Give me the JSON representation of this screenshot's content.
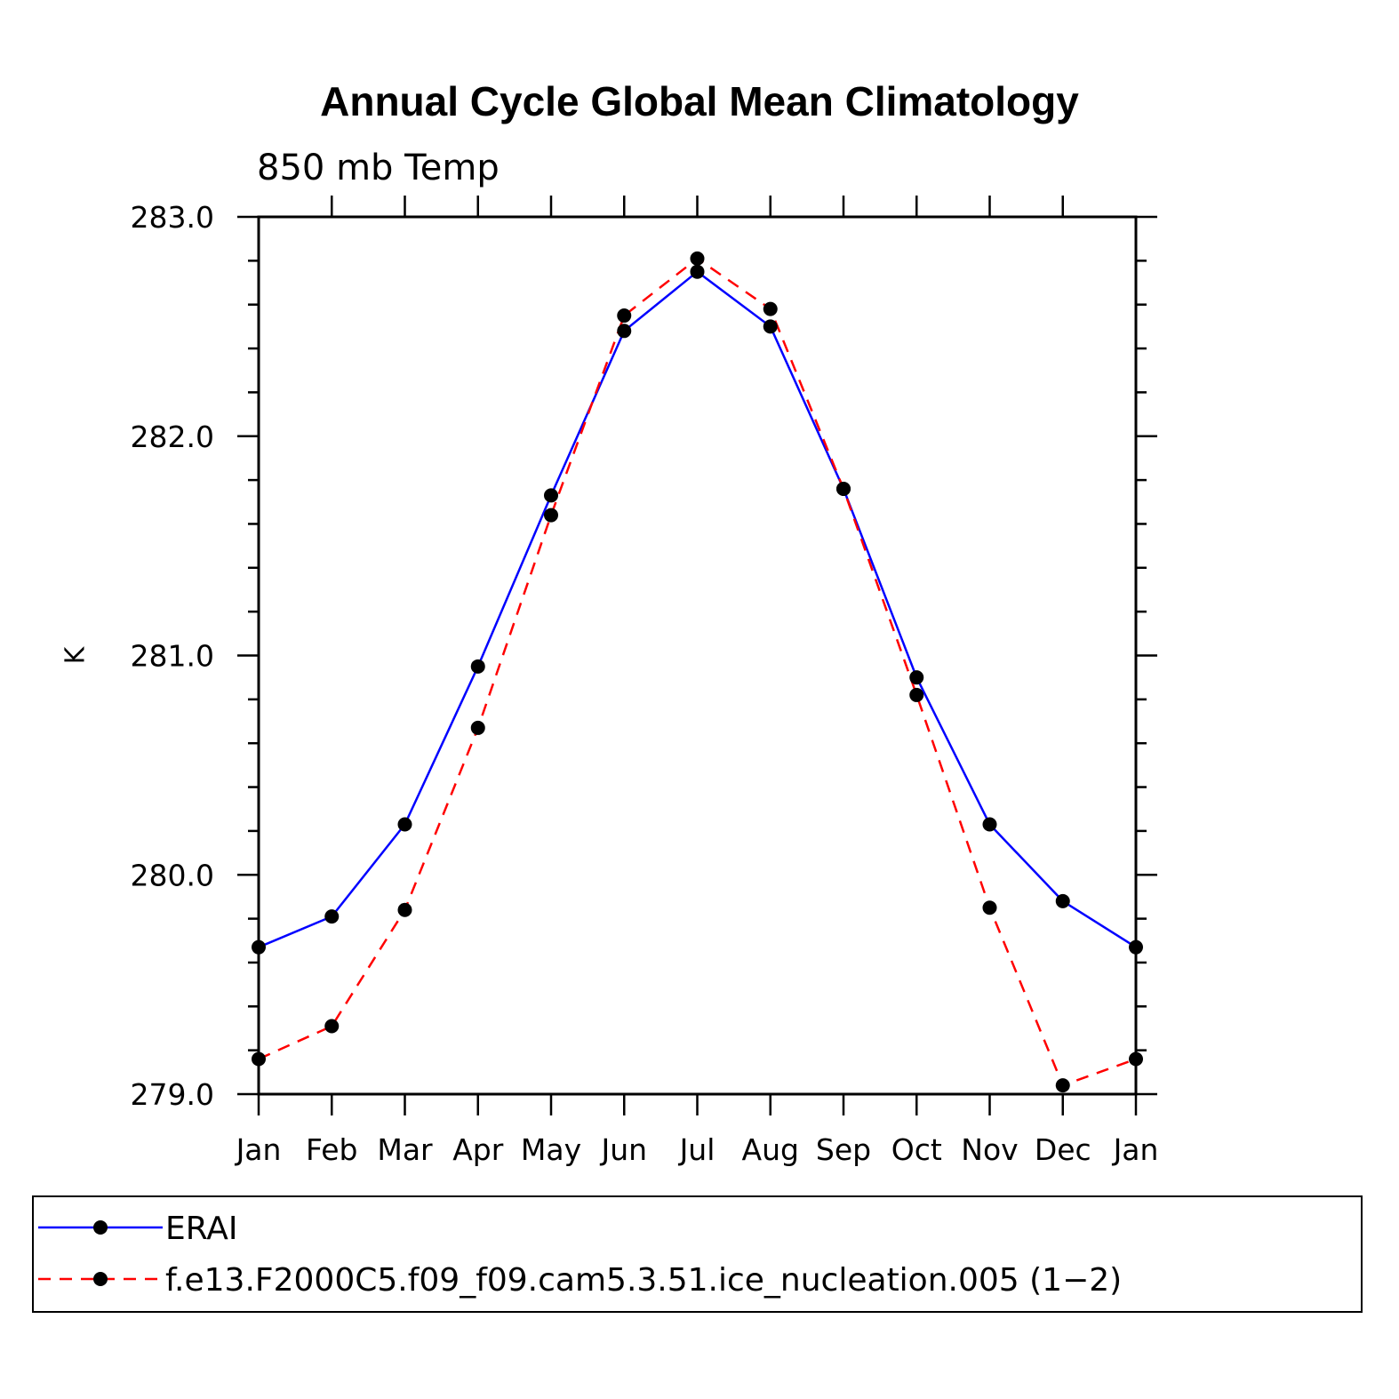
{
  "chart_data": {
    "type": "line",
    "title": "Annual Cycle Global Mean Climatology",
    "subtitle": "850 mb Temp",
    "xlabel": "",
    "ylabel": "K",
    "categories": [
      "Jan",
      "Feb",
      "Mar",
      "Apr",
      "May",
      "Jun",
      "Jul",
      "Aug",
      "Sep",
      "Oct",
      "Nov",
      "Dec",
      "Jan"
    ],
    "ylim": [
      279.0,
      283.0
    ],
    "yticks": [
      "279.0",
      "280.0",
      "281.0",
      "282.0",
      "283.0"
    ],
    "series": [
      {
        "name": "ERAI",
        "color": "#0000ff",
        "dash": "solid",
        "values": [
          279.67,
          279.81,
          280.23,
          280.95,
          281.73,
          282.48,
          282.75,
          282.5,
          281.76,
          280.9,
          280.23,
          279.88,
          279.67
        ]
      },
      {
        "name": "f.e13.F2000C5.f09_f09.cam5.3.51.ice_nucleation.005 (1−2)",
        "color": "#ff0000",
        "dash": "dashed",
        "values": [
          279.16,
          279.31,
          279.84,
          280.67,
          281.64,
          282.55,
          282.81,
          282.58,
          281.76,
          280.82,
          279.85,
          279.04,
          279.16
        ]
      }
    ],
    "legend_position": "bottom"
  }
}
